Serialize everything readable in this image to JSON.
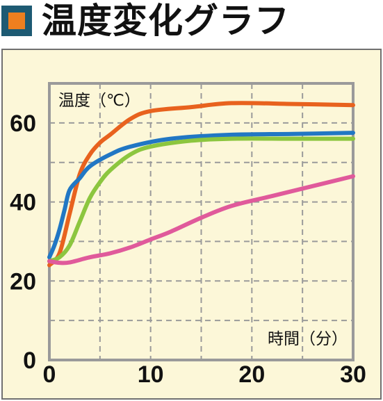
{
  "header": {
    "title": "温度変化グラフ",
    "bullet_outer_color": "#1d5a73",
    "bullet_inner_color": "#ee7f1f"
  },
  "chart_data": {
    "type": "line",
    "ylabel": "温度（℃）",
    "xlabel": "時間（分）",
    "xlim": [
      0,
      30
    ],
    "ylim": [
      0,
      70
    ],
    "x_ticks": [
      "0",
      "10",
      "20",
      "30"
    ],
    "y_ticks": [
      "0",
      "20",
      "40",
      "60"
    ],
    "grid": true,
    "series": [
      {
        "color": "#e8621e",
        "x": [
          0,
          1,
          2,
          3,
          4,
          5,
          6,
          8,
          10,
          14,
          18,
          24,
          30
        ],
        "y": [
          24,
          27,
          37,
          47,
          52,
          55,
          57,
          61,
          63,
          64,
          65,
          64.8,
          64.5
        ]
      },
      {
        "color": "#2177c4",
        "x": [
          0,
          0.5,
          1,
          1.5,
          2,
          3,
          4,
          6,
          8,
          12,
          18,
          24,
          30
        ],
        "y": [
          26,
          29,
          33,
          38,
          43,
          46,
          49,
          52,
          54,
          56,
          57,
          57.2,
          57.5
        ]
      },
      {
        "color": "#8cc63f",
        "x": [
          0,
          1,
          2,
          3,
          4,
          5,
          6,
          8,
          10,
          14,
          18,
          24,
          30
        ],
        "y": [
          25,
          26,
          29,
          35,
          41,
          45,
          48,
          52,
          54,
          55.5,
          56,
          56,
          56
        ]
      },
      {
        "color": "#e05a9b",
        "x": [
          0,
          1,
          2,
          4,
          6,
          8,
          10,
          12,
          15,
          18,
          22,
          26,
          30
        ],
        "y": [
          25,
          24.6,
          24.7,
          26,
          27,
          28.5,
          30.5,
          32.5,
          36,
          39,
          41.5,
          44,
          46.5
        ]
      }
    ]
  }
}
